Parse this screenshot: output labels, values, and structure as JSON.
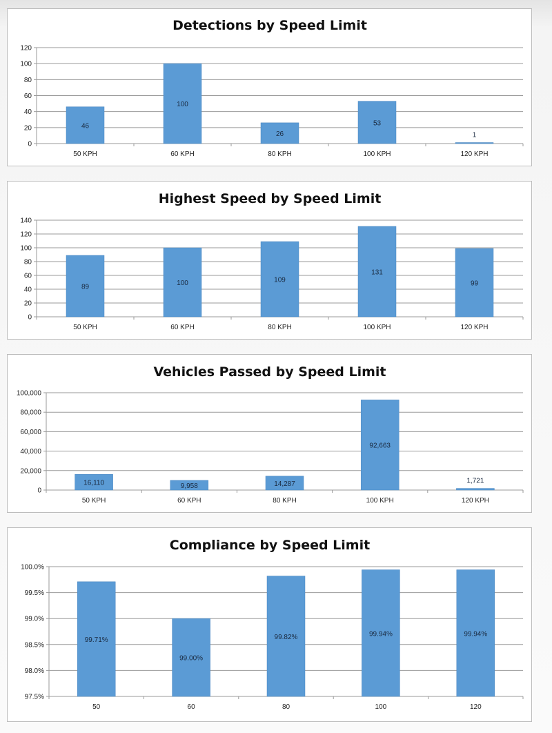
{
  "colors": {
    "bar": "#5b9bd5",
    "grid": "#9a9a9a",
    "panel_border": "#bdbdbd"
  },
  "chart_data": [
    {
      "type": "bar",
      "title": "Detections by Speed Limit",
      "categories": [
        "50 KPH",
        "60 KPH",
        "80 KPH",
        "100 KPH",
        "120 KPH"
      ],
      "values": [
        46,
        100,
        26,
        53,
        1
      ],
      "data_labels": [
        "46",
        "100",
        "26",
        "53",
        "1"
      ],
      "ylim": [
        0,
        120
      ],
      "yticks": [
        0,
        20,
        40,
        60,
        80,
        100,
        120
      ],
      "ytick_labels": [
        "0",
        "20",
        "40",
        "60",
        "80",
        "100",
        "120"
      ],
      "grid": true,
      "legend": "none"
    },
    {
      "type": "bar",
      "title": "Highest Speed by Speed Limit",
      "categories": [
        "50 KPH",
        "60 KPH",
        "80 KPH",
        "100 KPH",
        "120 KPH"
      ],
      "values": [
        89,
        100,
        109,
        131,
        99
      ],
      "data_labels": [
        "89",
        "100",
        "109",
        "131",
        "99"
      ],
      "ylim": [
        0,
        140
      ],
      "yticks": [
        0,
        20,
        40,
        60,
        80,
        100,
        120,
        140
      ],
      "ytick_labels": [
        "0",
        "20",
        "40",
        "60",
        "80",
        "100",
        "120",
        "140"
      ],
      "grid": true,
      "legend": "none"
    },
    {
      "type": "bar",
      "title": "Vehicles Passed by Speed Limit",
      "categories": [
        "50 KPH",
        "60 KPH",
        "80 KPH",
        "100 KPH",
        "120 KPH"
      ],
      "values": [
        16110,
        9958,
        14287,
        92663,
        1721
      ],
      "data_labels": [
        "16,110",
        "9,958",
        "14,287",
        "92,663",
        "1,721"
      ],
      "ylim": [
        0,
        100000
      ],
      "yticks": [
        0,
        20000,
        40000,
        60000,
        80000,
        100000
      ],
      "ytick_labels": [
        "0",
        "20,000",
        "40,000",
        "60,000",
        "80,000",
        "100,000"
      ],
      "grid": true,
      "legend": "none"
    },
    {
      "type": "bar",
      "title": "Compliance by Speed Limit",
      "categories": [
        "50",
        "60",
        "80",
        "100",
        "120"
      ],
      "values": [
        99.71,
        99.0,
        99.82,
        99.94,
        99.94
      ],
      "data_labels": [
        "99.71%",
        "99.00%",
        "99.82%",
        "99.94%",
        "99.94%"
      ],
      "ylim": [
        97.5,
        100
      ],
      "yticks": [
        97.5,
        98.0,
        98.5,
        99.0,
        99.5,
        100.0
      ],
      "ytick_labels": [
        "97.5%",
        "98.0%",
        "98.5%",
        "99.0%",
        "99.5%",
        "100.0%"
      ],
      "grid": true,
      "legend": "none"
    }
  ]
}
